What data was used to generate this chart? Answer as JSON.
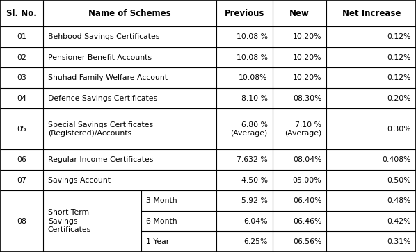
{
  "figsize": [
    5.98,
    3.63
  ],
  "dpi": 100,
  "bg_color": "#ffffff",
  "line_color": "#000000",
  "header_fontsize": 8.5,
  "cell_fontsize": 7.8,
  "col_bounds": [
    0.0,
    0.103,
    0.52,
    0.655,
    0.785,
    1.0
  ],
  "col08_split": 0.34,
  "row_props": [
    1.3,
    1.0,
    1.0,
    1.0,
    1.0,
    2.0,
    1.0,
    1.0,
    3.0
  ],
  "header": [
    "Sl. No.",
    "Name of Schemes",
    "Previous",
    "New",
    "Net Increase"
  ],
  "rows_simple": [
    {
      "sl": "01",
      "name": "Behbood Savings Certificates",
      "prev": "10.08 %",
      "new": "10.20%",
      "net": "0.12%"
    },
    {
      "sl": "02",
      "name": "Pensioner Benefit Accounts",
      "prev": "10.08 %",
      "new": "10.20%",
      "net": "0.12%"
    },
    {
      "sl": "03",
      "name": "Shuhad Family Welfare Account",
      "prev": "10.08%",
      "new": "10.20%",
      "net": "0.12%"
    },
    {
      "sl": "04",
      "name": "Defence Savings Certificates",
      "prev": "8.10 %",
      "new": "08.30%",
      "net": "0.20%"
    },
    {
      "sl": "05",
      "name": "Special Savings Certificates\n(Registered)/Accounts",
      "prev": "6.80 %\n(Average)",
      "new": "7.10 %\n(Average)",
      "net": "0.30%"
    },
    {
      "sl": "06",
      "name": "Regular Income Certificates",
      "prev": "7.632 %",
      "new": "08.04%",
      "net": "0.408%"
    },
    {
      "sl": "07",
      "name": "Savings Account",
      "prev": "4.50 %",
      "new": "05.00%",
      "net": "0.50%"
    }
  ],
  "row08": {
    "sl": "08",
    "name": "Short Term\nSavings\nCertificates",
    "subs": [
      "3 Month",
      "6 Month",
      "1 Year"
    ],
    "prevs": [
      "5.92 %",
      "6.04%",
      "6.25%"
    ],
    "news": [
      "06.40%",
      "06.46%",
      "06.56%"
    ],
    "nets": [
      "0.48%",
      "0.42%",
      "0.31%"
    ]
  }
}
